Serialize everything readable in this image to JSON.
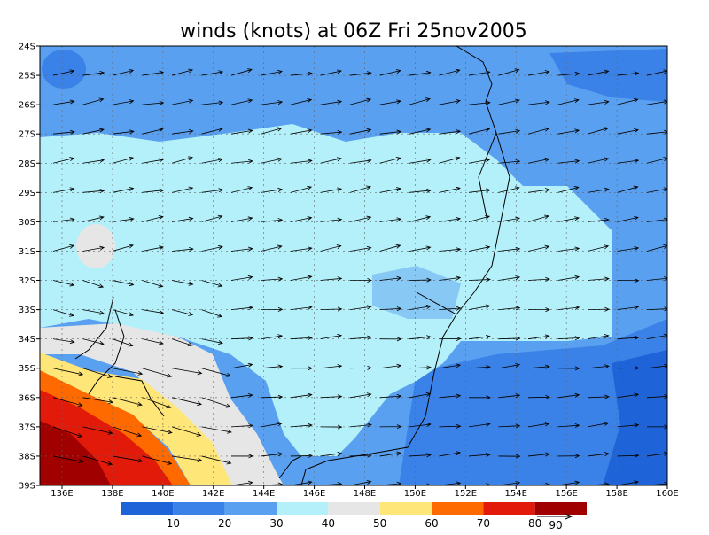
{
  "title": "winds (knots) at 06Z Fri 25nov2005",
  "map": {
    "lat_labels": [
      "24S",
      "25S",
      "26S",
      "27S",
      "28S",
      "29S",
      "30S",
      "31S",
      "32S",
      "33S",
      "34S",
      "35S",
      "36S",
      "37S",
      "38S",
      "39S"
    ],
    "lon_labels": [
      "136E",
      "138E",
      "140E",
      "142E",
      "144E",
      "146E",
      "148E",
      "150E",
      "152E",
      "154E",
      "156E",
      "158E",
      "160E"
    ]
  },
  "colorbar": {
    "labels": [
      "10",
      "20",
      "30",
      "40",
      "50",
      "60",
      "70",
      "80"
    ],
    "colors": [
      "#1e64d8",
      "#3a82e8",
      "#5aa0f0",
      "#b4f0fa",
      "#e6e6e6",
      "#ffe678",
      "#ff6a00",
      "#e11a0a",
      "#a00000"
    ]
  },
  "vector_reference": {
    "label": "90"
  }
}
